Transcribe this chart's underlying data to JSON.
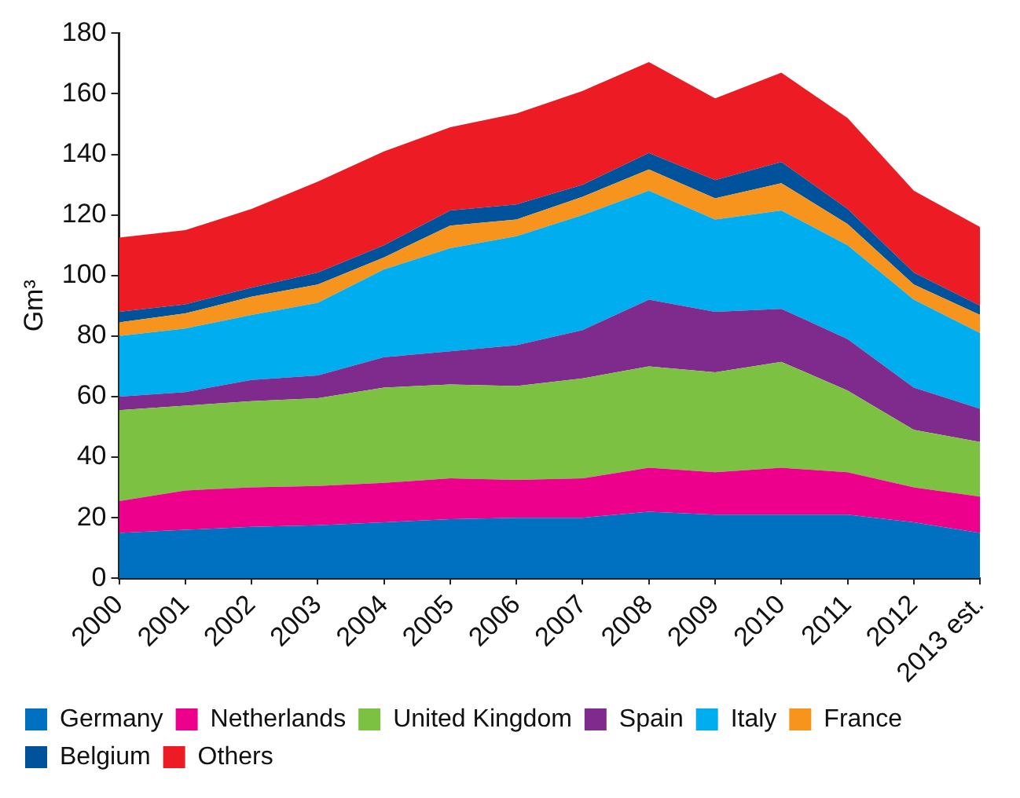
{
  "chart_data": {
    "type": "area",
    "stacked": true,
    "ylabel": "Gm³",
    "categories": [
      "2000",
      "2001",
      "2002",
      "2003",
      "2004",
      "2005",
      "2006",
      "2007",
      "2008",
      "2009",
      "2010",
      "2011",
      "2012",
      "2013 est."
    ],
    "ylim": [
      0,
      180
    ],
    "yticks": [
      0,
      20,
      40,
      60,
      80,
      100,
      120,
      140,
      160,
      180
    ],
    "grid": false,
    "legend": "bottom",
    "marker": "none",
    "series": [
      {
        "name": "Germany",
        "color": "#0070c0",
        "values": [
          15,
          16,
          17,
          17.5,
          18.5,
          19.5,
          20,
          20,
          22,
          21,
          21,
          21,
          18.5,
          15
        ]
      },
      {
        "name": "Netherlands",
        "color": "#ec008c",
        "values": [
          10.5,
          13,
          13,
          13,
          13,
          13.5,
          12.5,
          13,
          14.5,
          14,
          15.5,
          14,
          11.5,
          12
        ]
      },
      {
        "name": "United Kingdom",
        "color": "#7dc142",
        "values": [
          30,
          28,
          28.5,
          29,
          31.5,
          31,
          31,
          33,
          33.5,
          33,
          35,
          27,
          19,
          18
        ]
      },
      {
        "name": "Spain",
        "color": "#7f2a8d",
        "values": [
          4.5,
          4.5,
          7,
          7.5,
          10,
          11,
          13.5,
          16,
          22,
          20,
          17.5,
          17,
          14,
          11
        ]
      },
      {
        "name": "Italy",
        "color": "#00aeef",
        "values": [
          20,
          21,
          21.5,
          24,
          29,
          34,
          36,
          38,
          36,
          30.5,
          32.5,
          31,
          29,
          25
        ]
      },
      {
        "name": "France",
        "color": "#f7941d",
        "values": [
          4.5,
          5,
          6,
          6,
          4,
          7.5,
          5.5,
          6,
          7,
          7,
          9,
          7,
          5,
          6
        ]
      },
      {
        "name": "Belgium",
        "color": "#00529b",
        "values": [
          3.5,
          3,
          3,
          4,
          4,
          5,
          5,
          4,
          5.5,
          6,
          7,
          5,
          4,
          3
        ]
      },
      {
        "name": "Others",
        "color": "#ed1c24",
        "values": [
          24.5,
          24.5,
          26,
          30,
          31,
          27.5,
          30,
          31,
          30,
          27,
          29.5,
          30,
          27,
          26
        ]
      }
    ]
  }
}
